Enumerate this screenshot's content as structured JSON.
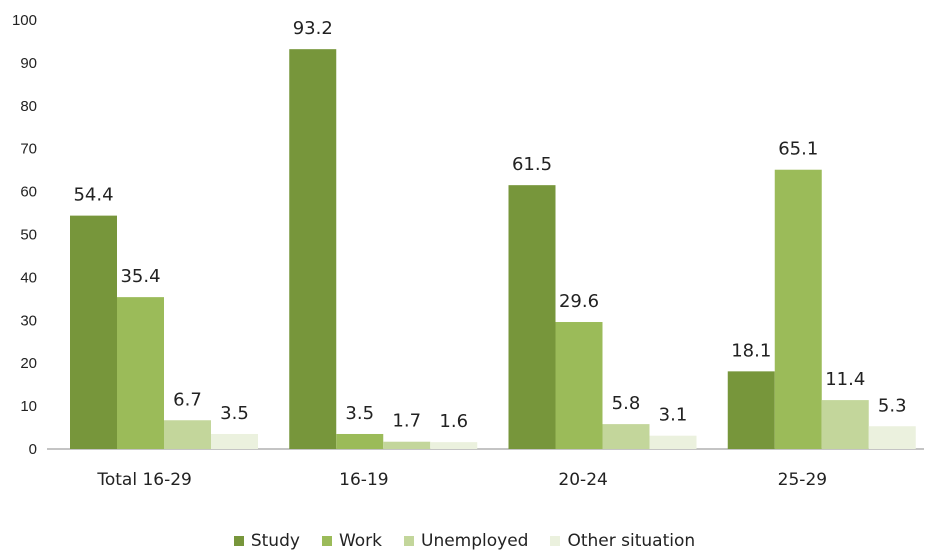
{
  "chart_data": {
    "type": "bar",
    "categories": [
      "Total 16-29",
      "16-19",
      "20-24",
      "25-29"
    ],
    "series": [
      {
        "name": "Study",
        "values": [
          54.4,
          93.2,
          61.5,
          18.1
        ],
        "color": "#77963b"
      },
      {
        "name": "Work",
        "values": [
          35.4,
          3.5,
          29.6,
          65.1
        ],
        "color": "#9bbb59"
      },
      {
        "name": "Unemployed",
        "values": [
          6.7,
          1.7,
          5.8,
          11.4
        ],
        "color": "#c3d69b"
      },
      {
        "name": "Other situation",
        "values": [
          3.5,
          1.6,
          3.1,
          5.3
        ],
        "color": "#ebf1de"
      }
    ],
    "title": "",
    "xlabel": "",
    "ylabel": "",
    "ylim": [
      0,
      100
    ],
    "yticks": [
      "0",
      "10",
      "20",
      "30",
      "40",
      "50",
      "60",
      "70",
      "80",
      "90",
      "100"
    ],
    "data_labels": [
      [
        "54.4",
        "93.2",
        "61.5",
        "18.1"
      ],
      [
        "35.4",
        "3.5",
        "29.6",
        "65.1"
      ],
      [
        "6.7",
        "1.7",
        "5.8",
        "11.4"
      ],
      [
        "3.5",
        "1.6",
        "3.1",
        "5.3"
      ]
    ],
    "grid": false,
    "legend_position": "bottom"
  }
}
